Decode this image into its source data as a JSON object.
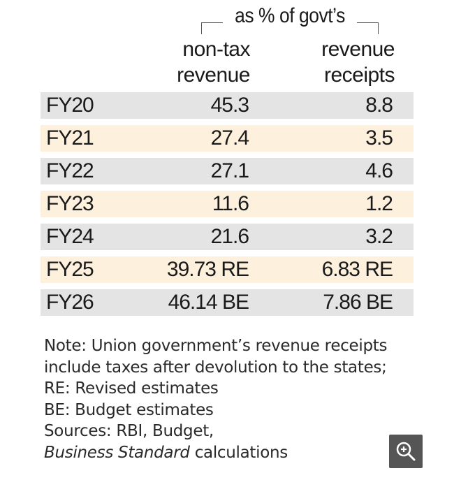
{
  "header": {
    "group_label": "as % of govt’s",
    "col1_line1": "non-tax",
    "col1_line2": "revenue",
    "col2_line1": "revenue",
    "col2_line2": "receipts"
  },
  "chart_data": {
    "type": "table",
    "columns": [
      "non-tax revenue",
      "revenue receipts"
    ],
    "group_header": "as % of govt’s",
    "rows": [
      {
        "label": "FY20",
        "v1": "45.3",
        "v2": "8.8"
      },
      {
        "label": "FY21",
        "v1": "27.4",
        "v2": "3.5"
      },
      {
        "label": "FY22",
        "v1": "27.1",
        "v2": "4.6"
      },
      {
        "label": "FY23",
        "v1": "11.6",
        "v2": "1.2"
      },
      {
        "label": "FY24",
        "v1": "21.6",
        "v2": "3.2"
      },
      {
        "label": "FY25",
        "v1": "39.73 RE",
        "v2": "6.83 RE"
      },
      {
        "label": "FY26",
        "v1": "46.14 BE",
        "v2": "7.86 BE"
      }
    ]
  },
  "note": {
    "line1": "Note: Union government’s revenue receipts",
    "line2": "include taxes after devolution to the states;",
    "line3": "RE: Revised estimates",
    "line4": "BE: Budget estimates",
    "line5": "Sources: RBI, Budget,",
    "line6_italic": "Business Standard",
    "line6_rest": " calculations"
  },
  "colors": {
    "row_grey": "#e4e4e4",
    "row_cream": "#fdf1dd",
    "zoom_button": "#555555"
  },
  "zoom_icon": "zoom-in-icon"
}
